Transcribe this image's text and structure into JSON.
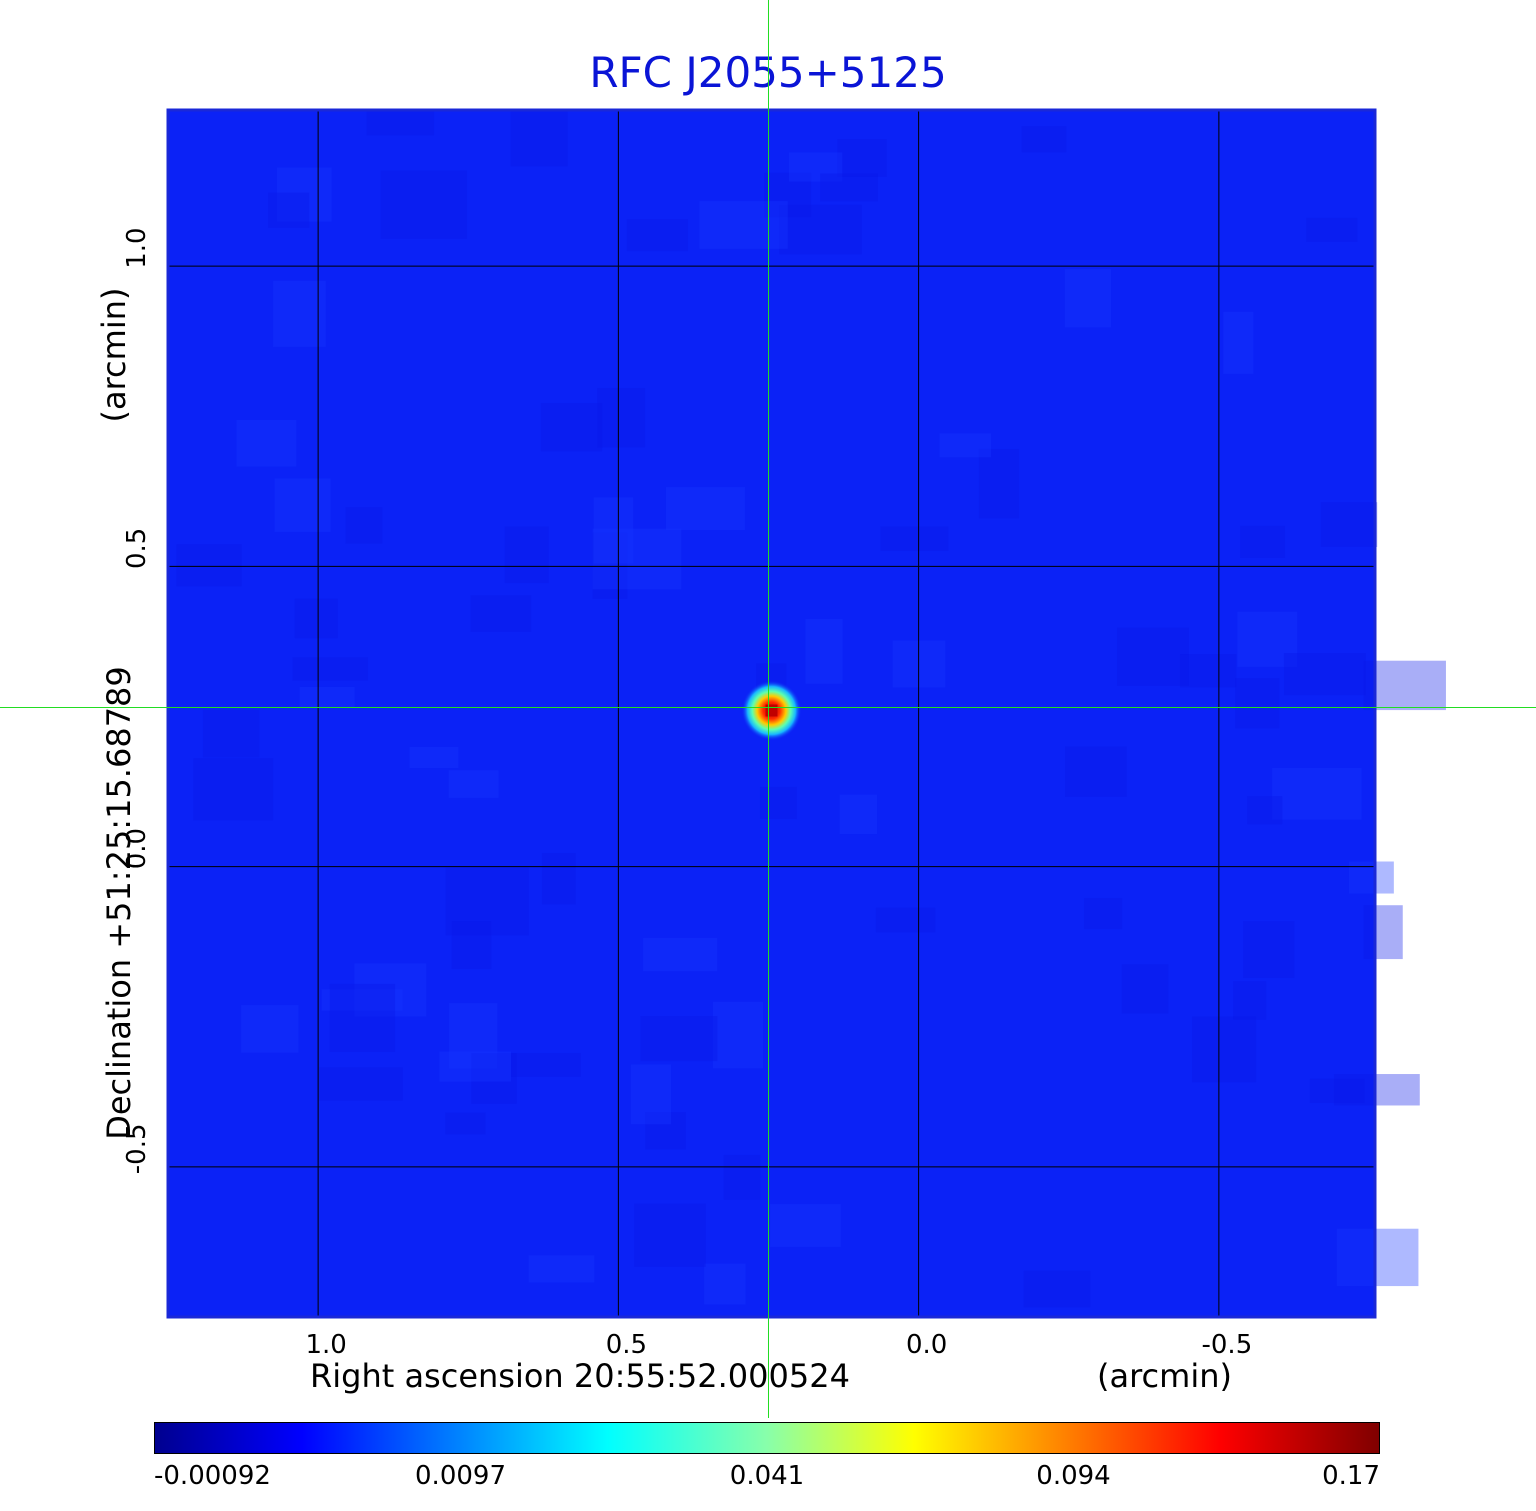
{
  "chart_data": {
    "type": "heatmap",
    "title": "RFC J2055+5125",
    "colors": {
      "title": "#0a14d6",
      "frame": "#1a28d8",
      "background_field": "#0b22f6",
      "crosshair": "#22dd22",
      "grid": "#000000"
    },
    "xlabel": "Right ascension  20:55:52.000524",
    "xunit": "(arcmin)",
    "ylabel": "Declination  +51:25:15.68789",
    "yunit": "(arcmin)",
    "x_ticks": [
      "1.0",
      "0.5",
      "0.0",
      "-0.5"
    ],
    "x_tick_values": [
      1.0,
      0.5,
      0.0,
      -0.5
    ],
    "y_ticks": [
      "1.0",
      "0.5",
      "0.0",
      "-0.5"
    ],
    "y_tick_values": [
      1.0,
      0.5,
      0.0,
      -0.5
    ],
    "xlim": [
      1.25,
      -0.76
    ],
    "ylim": [
      -0.75,
      1.26
    ],
    "grid": true,
    "crosshair": {
      "x": 0.25,
      "y": 0.265
    },
    "source_peak": {
      "x": 0.245,
      "y": 0.26,
      "value": 0.17
    },
    "colorbar": {
      "colormap": "jet",
      "tick_labels": [
        "-0.00092",
        "0.0097",
        "0.041",
        "0.094",
        "0.17"
      ],
      "tick_values": [
        -0.00092,
        0.0097,
        0.041,
        0.094,
        0.17
      ],
      "range": [
        -0.00092,
        0.17
      ]
    }
  }
}
